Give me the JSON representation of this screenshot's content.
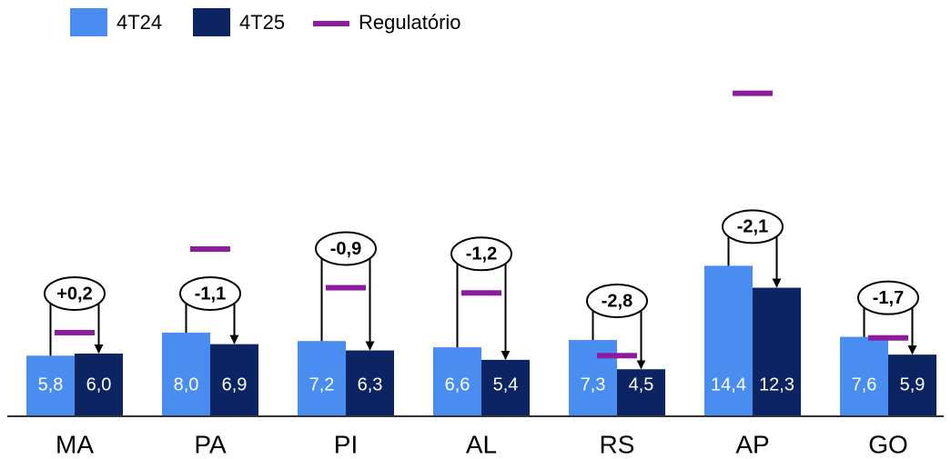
{
  "chart_data": {
    "type": "bar",
    "categories": [
      "MA",
      "PA",
      "PI",
      "AL",
      "RS",
      "AP",
      "GO"
    ],
    "series": [
      {
        "name": "4T24",
        "color": "#4a8df0",
        "values": [
          5.8,
          8.0,
          7.2,
          6.6,
          7.3,
          14.4,
          7.6
        ],
        "value_labels": [
          "5,8",
          "8,0",
          "7,2",
          "6,6",
          "7,3",
          "14,4",
          "7,6"
        ]
      },
      {
        "name": "4T25",
        "color": "#0c2461",
        "values": [
          6.0,
          6.9,
          6.3,
          5.4,
          4.5,
          12.3,
          5.9
        ],
        "value_labels": [
          "6,0",
          "6,9",
          "6,3",
          "5,4",
          "4,5",
          "12,3",
          "5,9"
        ]
      }
    ],
    "regulatory": {
      "name": "Regulatório",
      "color": "#8e1a9e",
      "values": [
        8.0,
        16.0,
        12.3,
        11.8,
        5.8,
        30.9,
        7.5
      ]
    },
    "annotations": [
      "+0,2",
      "-1,1",
      "-0,9",
      "-1,2",
      "-2,8",
      "-2,1",
      "-1,7"
    ],
    "ylim": [
      0,
      35
    ]
  }
}
